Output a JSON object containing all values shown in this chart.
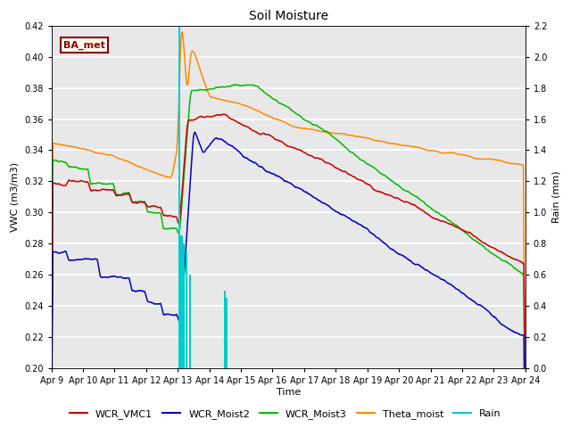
{
  "title": "Soil Moisture",
  "xlabel": "Time",
  "ylabel_left": "VWC (m3/m3)",
  "ylabel_right": "Rain (mm)",
  "ylim_left": [
    0.2,
    0.42
  ],
  "ylim_right": [
    0.0,
    2.2
  ],
  "yticks_left": [
    0.2,
    0.22,
    0.24,
    0.26,
    0.28,
    0.3,
    0.32,
    0.34,
    0.36,
    0.38,
    0.4,
    0.42
  ],
  "yticks_right": [
    0.0,
    0.2,
    0.4,
    0.6,
    0.8,
    1.0,
    1.2,
    1.4,
    1.6,
    1.8,
    2.0,
    2.2
  ],
  "colors": {
    "WCR_VMC1": "#cc0000",
    "WCR_Moist2": "#0000cc",
    "WCR_Moist3": "#00bb00",
    "Theta_moist": "#ff8800",
    "Rain": "#00cccc"
  },
  "background_color": "#e8e8e8",
  "grid_color": "#ffffff",
  "annotation_text": "BA_met",
  "annotation_color": "#8b0000",
  "annotation_bg": "#fffff0",
  "x_start": 9,
  "x_end": 24,
  "x_ticks": [
    9,
    10,
    11,
    12,
    13,
    14,
    15,
    16,
    17,
    18,
    19,
    20,
    21,
    22,
    23,
    24
  ],
  "x_tick_labels": [
    "Apr 9",
    "Apr 10",
    "Apr 11",
    "Apr 12",
    "Apr 13",
    "Apr 14",
    "Apr 15",
    "Apr 16",
    "Apr 17",
    "Apr 18",
    "Apr 19",
    "Apr 20",
    "Apr 21",
    "Apr 22",
    "Apr 23",
    "Apr 24"
  ]
}
